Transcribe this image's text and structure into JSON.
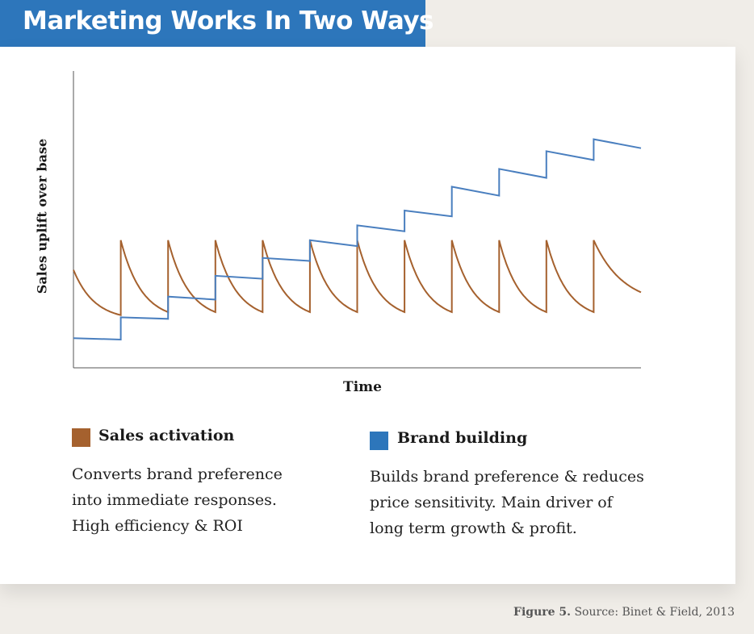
{
  "header": {
    "title": "Marketing Works In Two Ways"
  },
  "chart_data": {
    "type": "line",
    "xlabel": "Time",
    "ylabel": "Sales uplift over base",
    "xlim": [
      0,
      12
    ],
    "ylim": [
      0,
      10
    ],
    "axis_ticks": false,
    "series": [
      {
        "name": "Sales activation",
        "color": "#a5612e",
        "peak": 4.3,
        "first_value": 3.3,
        "trough": 1.6,
        "decay_rate": 0.71,
        "cycle_starts": [
          1,
          2,
          3,
          4,
          5,
          6,
          7,
          8,
          9,
          10,
          11
        ],
        "end_value": 2.1
      },
      {
        "name": "Brand building",
        "color": "#4a7fbf",
        "x": [
          0,
          1,
          1,
          2,
          2,
          3,
          3,
          4,
          4,
          5,
          5,
          6,
          6,
          7,
          7,
          8,
          8,
          9,
          9,
          10,
          10,
          11,
          11,
          12
        ],
        "y": [
          1.0,
          0.95,
          1.7,
          1.65,
          2.4,
          2.3,
          3.1,
          3.0,
          3.7,
          3.6,
          4.3,
          4.1,
          4.8,
          4.6,
          5.3,
          5.1,
          6.1,
          5.8,
          6.7,
          6.4,
          7.3,
          7.0,
          7.7,
          7.4
        ]
      }
    ]
  },
  "legend": {
    "sales": {
      "label": "Sales activation",
      "color": "#a5612e",
      "desc": [
        "Converts brand preference",
        "into immediate responses.",
        "High efficiency & ROI"
      ]
    },
    "brand": {
      "label": "Brand building",
      "color": "#2d76bb",
      "desc": [
        "Builds brand preference & reduces",
        "price sensitivity. Main driver of",
        "long term growth & profit."
      ]
    }
  },
  "caption": {
    "figure": "Figure 5.",
    "source": "Source: Binet & Field, 2013"
  }
}
